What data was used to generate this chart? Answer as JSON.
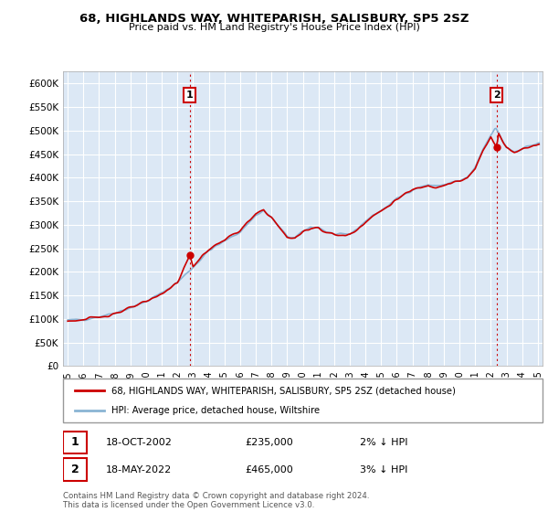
{
  "title": "68, HIGHLANDS WAY, WHITEPARISH, SALISBURY, SP5 2SZ",
  "subtitle": "Price paid vs. HM Land Registry's House Price Index (HPI)",
  "ylabel_ticks": [
    "£0",
    "£50K",
    "£100K",
    "£150K",
    "£200K",
    "£250K",
    "£300K",
    "£350K",
    "£400K",
    "£450K",
    "£500K",
    "£550K",
    "£600K"
  ],
  "ytick_vals": [
    0,
    50000,
    100000,
    150000,
    200000,
    250000,
    300000,
    350000,
    400000,
    450000,
    500000,
    550000,
    600000
  ],
  "ylim": [
    0,
    625000
  ],
  "sale1_x": 2002.79,
  "sale1_y": 235000,
  "sale2_x": 2022.37,
  "sale2_y": 465000,
  "legend_line1": "68, HIGHLANDS WAY, WHITEPARISH, SALISBURY, SP5 2SZ (detached house)",
  "legend_line2": "HPI: Average price, detached house, Wiltshire",
  "ann1_label": "1",
  "ann1_date": "18-OCT-2002",
  "ann1_price": "£235,000",
  "ann1_hpi": "2% ↓ HPI",
  "ann2_label": "2",
  "ann2_date": "18-MAY-2022",
  "ann2_price": "£465,000",
  "ann2_hpi": "3% ↓ HPI",
  "footer": "Contains HM Land Registry data © Crown copyright and database right 2024.\nThis data is licensed under the Open Government Licence v3.0.",
  "hpi_color": "#8ab4d4",
  "price_color": "#cc0000",
  "marker_color": "#cc0000",
  "chart_bg": "#dce8f5",
  "grid_color": "#ffffff",
  "xtick_years": [
    1995,
    1996,
    1997,
    1998,
    1999,
    2000,
    2001,
    2002,
    2003,
    2004,
    2005,
    2006,
    2007,
    2008,
    2009,
    2010,
    2011,
    2012,
    2013,
    2014,
    2015,
    2016,
    2017,
    2018,
    2019,
    2020,
    2021,
    2022,
    2023,
    2024,
    2025
  ]
}
